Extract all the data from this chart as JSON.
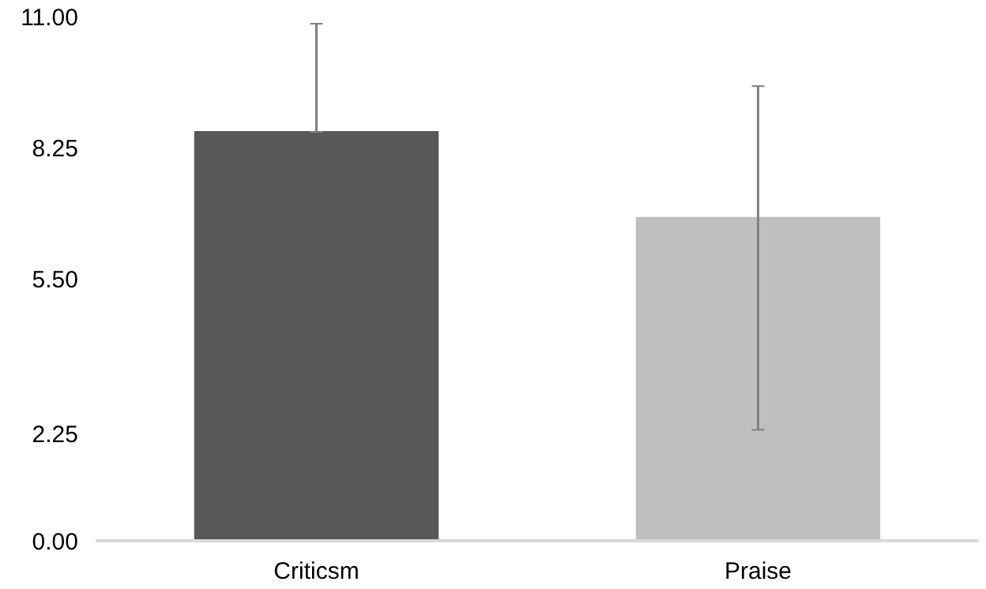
{
  "chart_data": {
    "type": "bar",
    "categories": [
      "Criticsm",
      "Praise"
    ],
    "values": [
      8.58,
      6.78
    ],
    "colors": [
      "#595959",
      "#bfbfbf"
    ],
    "errors": [
      [
        8.58,
        10.85
      ],
      [
        2.33,
        9.54
      ]
    ],
    "ylim": [
      0,
      11
    ],
    "yticks": [
      {
        "value": 0,
        "label": "0.00"
      },
      {
        "value": 2.25,
        "label": "2.25"
      },
      {
        "value": 5.5,
        "label": "5.50"
      },
      {
        "value": 8.25,
        "label": "8.25"
      },
      {
        "value": 11,
        "label": "11.00"
      }
    ],
    "grid": false
  }
}
